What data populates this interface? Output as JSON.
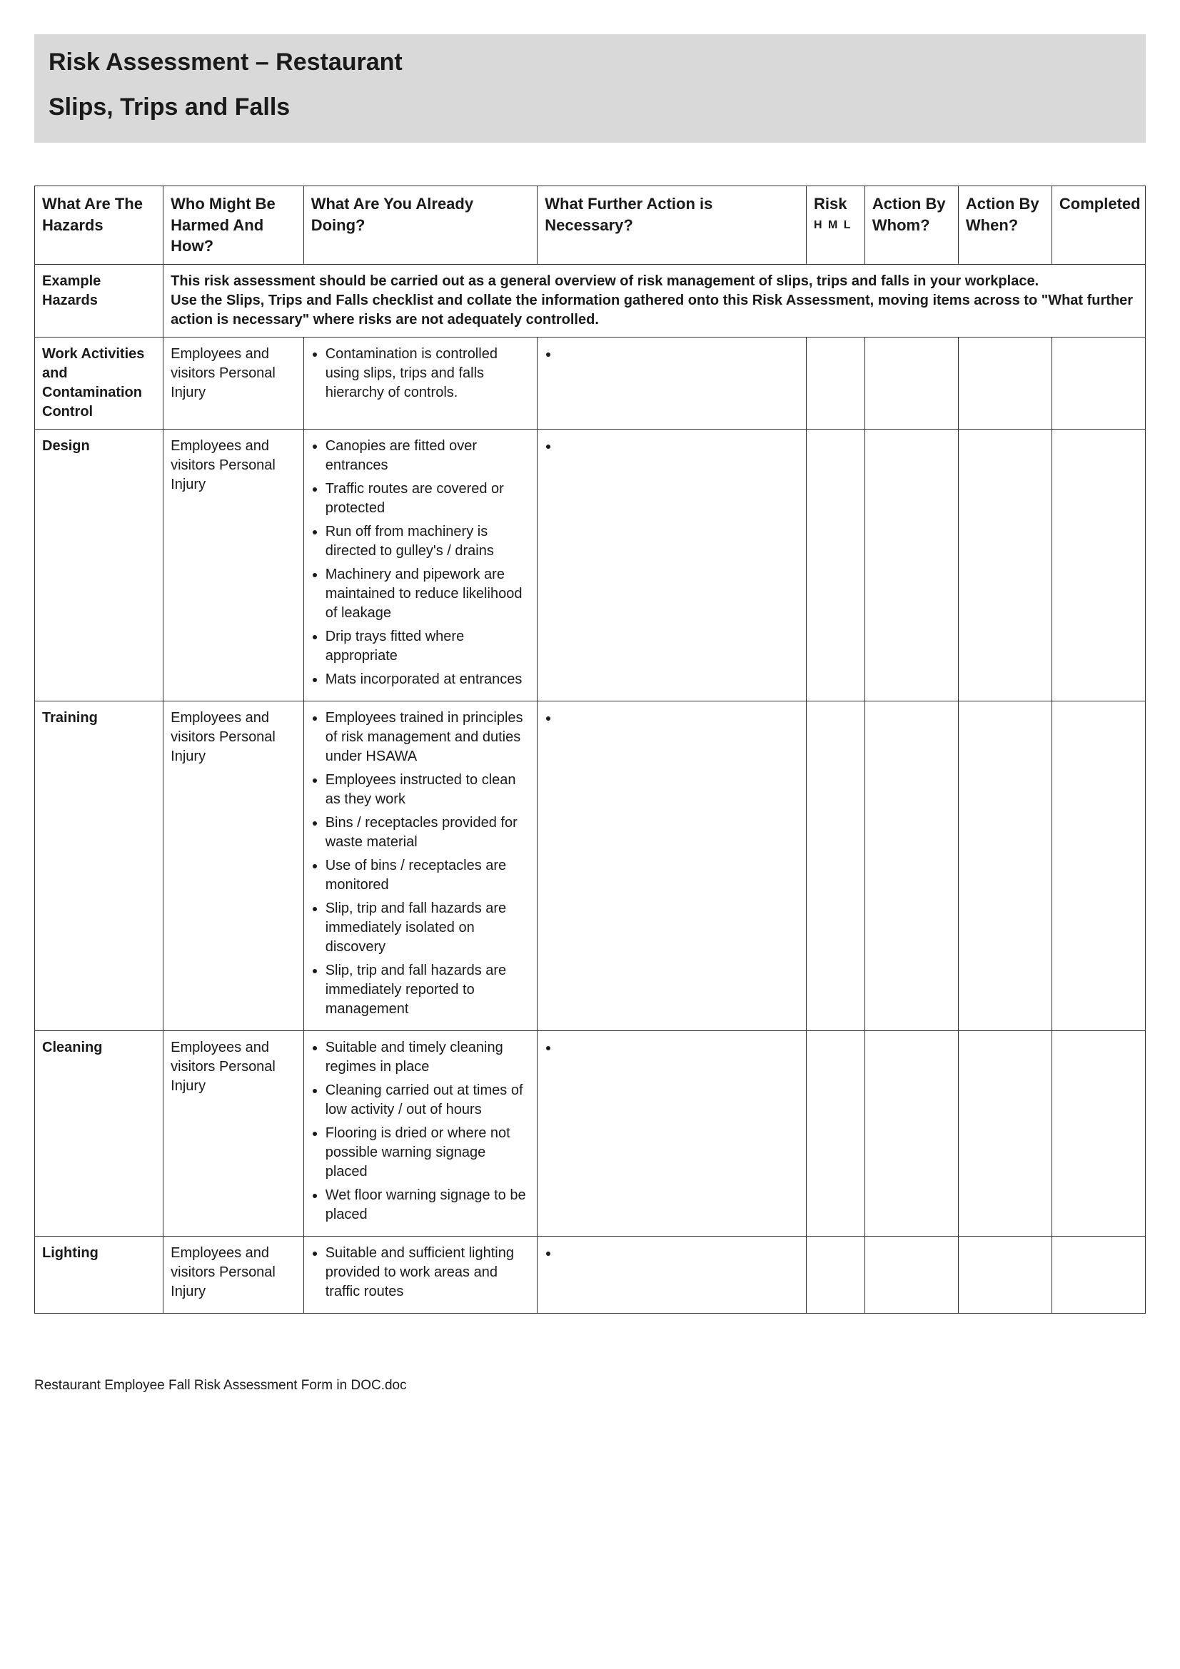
{
  "header": {
    "title": "Risk Assessment – Restaurant",
    "subtitle": "Slips, Trips and Falls",
    "bg_color": "#d9d9d9"
  },
  "columns": [
    "What Are The Hazards",
    "Who Might Be Harmed And How?",
    "What Are You Already Doing?",
    "What Further Action is Necessary?",
    "Risk",
    "Action By Whom?",
    "Action By When?",
    "Completed"
  ],
  "risk_sub": "H M L",
  "example_row": {
    "label": "Example Hazards",
    "lines": [
      "This risk assessment should be carried out as a general overview of risk management of slips, trips and falls in your workplace.",
      "Use the Slips, Trips and Falls checklist and collate the information gathered onto this Risk Assessment, moving items across to \"What further action is necessary\" where risks are not adequately controlled."
    ]
  },
  "rows": [
    {
      "hazard": "Work Activities and Contamination Control",
      "harmed": "Employees and visitors Personal Injury",
      "doing": [
        "Contamination is controlled using slips, trips and falls hierarchy of controls."
      ]
    },
    {
      "hazard": "Design",
      "harmed": "Employees and visitors Personal Injury",
      "doing": [
        "Canopies are fitted over entrances",
        "Traffic routes are covered or protected",
        "Run off from machinery is directed to gulley's / drains",
        "Machinery and pipework are maintained to reduce likelihood of leakage",
        "Drip trays fitted where appropriate",
        "Mats incorporated at entrances"
      ]
    },
    {
      "hazard": "Training",
      "harmed": "Employees and visitors Personal Injury",
      "doing": [
        "Employees trained in principles of risk management and duties under HSAWA",
        "Employees instructed to clean as they work",
        "Bins / receptacles provided for waste material",
        "Use of bins / receptacles are monitored",
        "Slip, trip and fall hazards are immediately isolated on discovery",
        "Slip, trip and fall hazards are immediately reported to management"
      ]
    },
    {
      "hazard": "Cleaning",
      "harmed": "Employees and visitors Personal Injury",
      "doing": [
        "Suitable and timely cleaning regimes in place",
        "Cleaning carried out at times of low activity / out of hours",
        "Flooring is dried or where not possible warning signage placed",
        "Wet floor warning signage to be placed"
      ]
    },
    {
      "hazard": "Lighting",
      "harmed": "Employees and visitors Personal Injury",
      "doing": [
        "Suitable and sufficient lighting provided to work areas and traffic routes"
      ]
    }
  ],
  "footer": "Restaurant Employee Fall Risk Assessment Form in DOC.doc",
  "style": {
    "page_bg": "#ffffff",
    "text_color": "#1a1a1a",
    "border_color": "#333333",
    "header_fontsize": 34,
    "th_fontsize": 22,
    "td_fontsize": 20,
    "footer_fontsize": 19
  }
}
